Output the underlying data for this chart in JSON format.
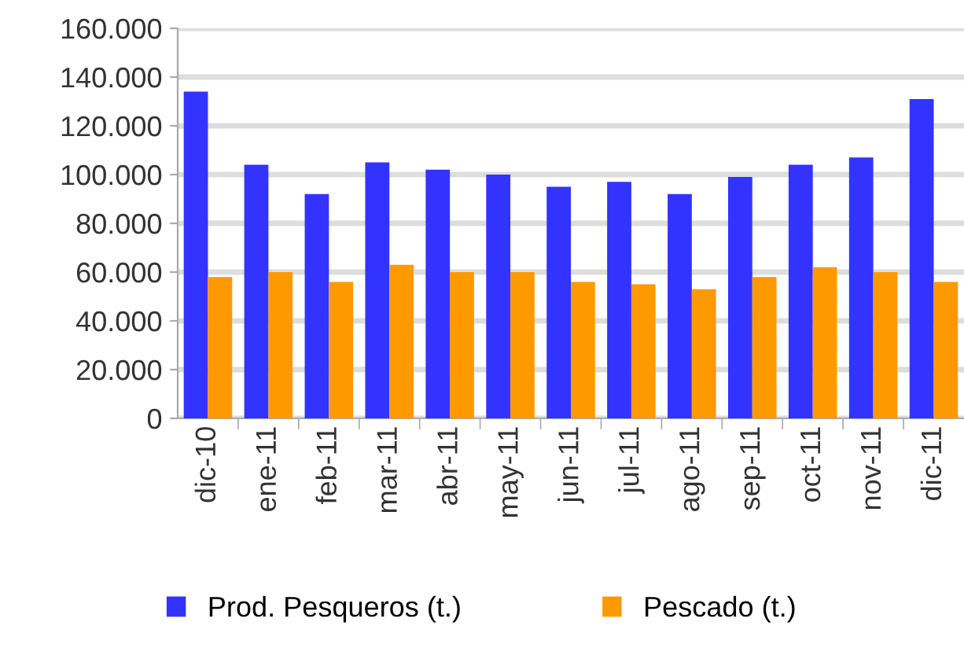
{
  "chart_data": {
    "type": "bar",
    "categories": [
      "dic-10",
      "ene-11",
      "feb-11",
      "mar-11",
      "abr-11",
      "may-11",
      "jun-11",
      "jul-11",
      "ago-11",
      "sep-11",
      "oct-11",
      "nov-11",
      "dic-11"
    ],
    "series": [
      {
        "name": "Prod. Pesqueros (t.)",
        "color": "#3333ff",
        "values": [
          134000,
          104000,
          92000,
          105000,
          102000,
          100000,
          95000,
          97000,
          92000,
          99000,
          104000,
          107000,
          131000
        ]
      },
      {
        "name": "Pescado (t.)",
        "color": "#ff9900",
        "values": [
          58000,
          60000,
          56000,
          63000,
          60000,
          60000,
          56000,
          55000,
          53000,
          58000,
          62000,
          60000,
          56000
        ]
      }
    ],
    "ylim": [
      0,
      160000
    ],
    "yticks": [
      {
        "value": 0,
        "label": "0"
      },
      {
        "value": 20000,
        "label": "20.000"
      },
      {
        "value": 40000,
        "label": "40.000"
      },
      {
        "value": 60000,
        "label": "60.000"
      },
      {
        "value": 80000,
        "label": "80.000"
      },
      {
        "value": 100000,
        "label": "100.000"
      },
      {
        "value": 120000,
        "label": "120.000"
      },
      {
        "value": 140000,
        "label": "140.000"
      },
      {
        "value": 160000,
        "label": "160.000"
      }
    ],
    "grid": "y",
    "legend": "bottom"
  }
}
